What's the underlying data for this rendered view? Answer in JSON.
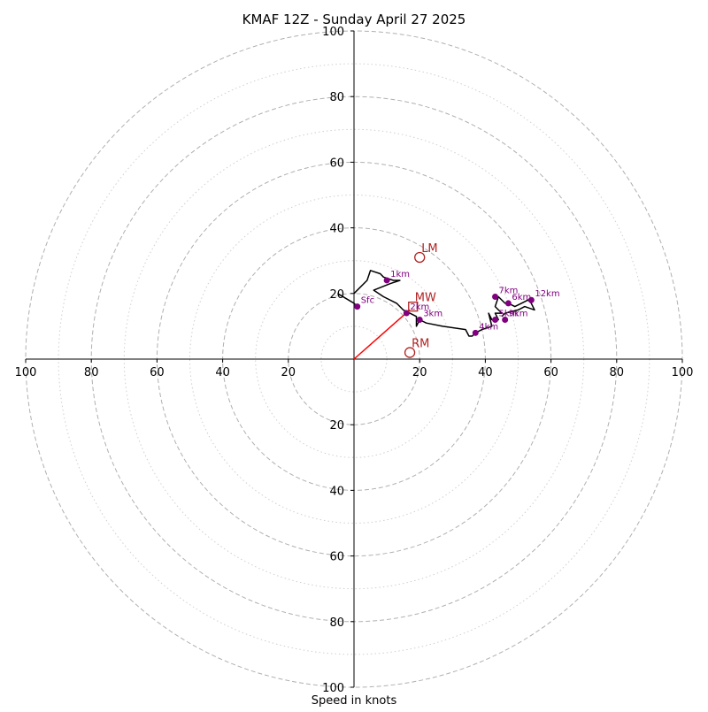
{
  "chart_data": {
    "type": "scatter",
    "title": "KMAF 12Z - Sunday April 27 2025",
    "xlabel": "Speed in knots",
    "ylabel": "",
    "xlim": [
      -100,
      100
    ],
    "ylim": [
      -100,
      100
    ],
    "ring_major": [
      20,
      40,
      60,
      80,
      100
    ],
    "ring_minor": [
      10,
      30,
      50,
      70,
      90
    ],
    "ticks": [
      20,
      40,
      60,
      80,
      100
    ],
    "tick_labels": [
      "20",
      "40",
      "60",
      "80",
      "100"
    ],
    "grid": true,
    "hodograph": [
      [
        0,
        20
      ],
      [
        4,
        24
      ],
      [
        5,
        27
      ],
      [
        8,
        26
      ],
      [
        9,
        25
      ],
      [
        12,
        24
      ],
      [
        14,
        24
      ],
      [
        11,
        23
      ],
      [
        6,
        21
      ],
      [
        9,
        19
      ],
      [
        13,
        17
      ],
      [
        15,
        15
      ],
      [
        17,
        14
      ],
      [
        19,
        13
      ],
      [
        19,
        12
      ],
      [
        19,
        10
      ],
      [
        20,
        12
      ],
      [
        22,
        11
      ],
      [
        27,
        10
      ],
      [
        34,
        9
      ],
      [
        35,
        7
      ],
      [
        36,
        7
      ],
      [
        37,
        8
      ],
      [
        39,
        9
      ],
      [
        42,
        10
      ],
      [
        41,
        14
      ],
      [
        42,
        12
      ],
      [
        44,
        12
      ],
      [
        43,
        14
      ],
      [
        45,
        14
      ],
      [
        43,
        16
      ],
      [
        44,
        19
      ],
      [
        46,
        17
      ],
      [
        47,
        17
      ],
      [
        49,
        16
      ],
      [
        51,
        17
      ],
      [
        53,
        18
      ],
      [
        54,
        17
      ],
      [
        55,
        15
      ],
      [
        52,
        16
      ],
      [
        50,
        15
      ],
      [
        46,
        14
      ],
      [
        45,
        13
      ]
    ],
    "surface_segment": [
      [
        -5,
        20
      ],
      [
        0,
        17
      ],
      [
        1,
        16
      ]
    ],
    "height_markers": [
      {
        "label": "Sfc",
        "u": 1,
        "v": 16
      },
      {
        "label": "1km",
        "u": 10,
        "v": 24
      },
      {
        "label": "2km",
        "u": 16,
        "v": 14
      },
      {
        "label": "3km",
        "u": 20,
        "v": 12
      },
      {
        "label": "4km",
        "u": 37,
        "v": 8
      },
      {
        "label": "5km",
        "u": 43,
        "v": 12
      },
      {
        "label": "6km",
        "u": 47,
        "v": 17
      },
      {
        "label": "7km",
        "u": 43,
        "v": 19
      },
      {
        "label": "9km",
        "u": 46,
        "v": 12
      },
      {
        "label": "12km",
        "u": 54,
        "v": 18
      }
    ],
    "storm_motion": [
      {
        "label": "LM",
        "u": 20,
        "v": 31
      },
      {
        "label": "MW",
        "u": 18,
        "v": 16
      },
      {
        "label": "RM",
        "u": 17,
        "v": 2
      }
    ],
    "shear_vector": {
      "from": [
        0,
        0
      ],
      "to": [
        17,
        15
      ]
    },
    "colors": {
      "hodograph": "#000000",
      "markers": "#800080",
      "storm_motion": "#b22222",
      "shear_vector": "#ff0000",
      "grid": "#b0b0b0"
    }
  }
}
